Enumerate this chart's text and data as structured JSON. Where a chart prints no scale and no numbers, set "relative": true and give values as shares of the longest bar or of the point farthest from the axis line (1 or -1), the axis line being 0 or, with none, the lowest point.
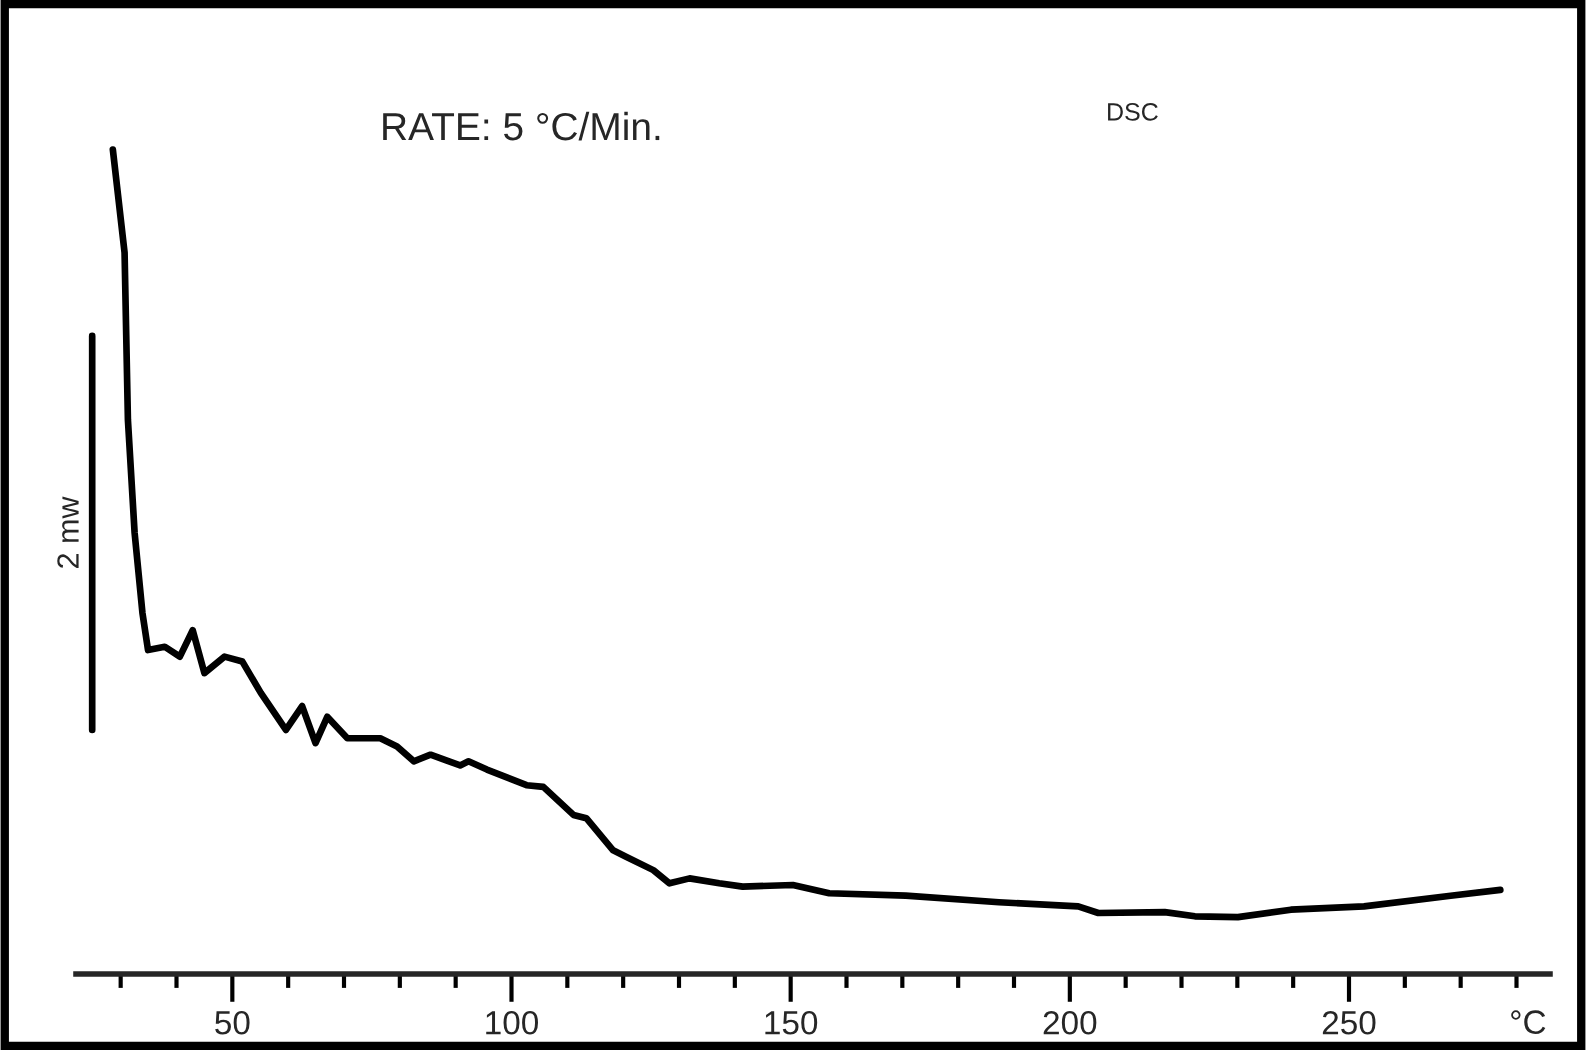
{
  "chart_data": {
    "type": "line",
    "relative": true,
    "xlabel": "°C",
    "annotations": [
      "RATE: 5 °C/Min.",
      "DSC"
    ],
    "xlim": [
      22,
      286
    ],
    "xticks": [
      {
        "value": 30,
        "label": null
      },
      {
        "value": 40,
        "label": null
      },
      50,
      {
        "value": 60,
        "label": null
      },
      {
        "value": 70,
        "label": null
      },
      {
        "value": 80,
        "label": null
      },
      {
        "value": 90,
        "label": null
      },
      100,
      {
        "value": 110,
        "label": null
      },
      {
        "value": 120,
        "label": null
      },
      {
        "value": 130,
        "label": null
      },
      {
        "value": 140,
        "label": null
      },
      150,
      {
        "value": 160,
        "label": null
      },
      {
        "value": 170,
        "label": null
      },
      {
        "value": 180,
        "label": null
      },
      {
        "value": 190,
        "label": null
      },
      200,
      {
        "value": 210,
        "label": null
      },
      {
        "value": 220,
        "label": null
      },
      {
        "value": 230,
        "label": null
      },
      {
        "value": 240,
        "label": null
      },
      250,
      {
        "value": 260,
        "label": null
      },
      {
        "value": 270,
        "label": null
      },
      {
        "value": 280,
        "label": null
      }
    ],
    "tick_labels": "x",
    "grid": false,
    "legend": false,
    "series": [
      {
        "name": "2 mw",
        "color": "#000000",
        "line_style": "solid",
        "marker": "none",
        "x": [
          24.9,
          24.9
        ],
        "values": [
          0.296,
          0.774
        ]
      },
      {
        "color": "#000000",
        "line_style": "solid",
        "marker": "none",
        "x": [
          28.6,
          30.7,
          31.3,
          32.5,
          33.9,
          34.9,
          37.9,
          40.6,
          42.9,
          45.0,
          48.6,
          51.8,
          55.1,
          59.6,
          62.5,
          64.9,
          67.0,
          70.6,
          76.5,
          79.5,
          82.5,
          85.5,
          90.8,
          92.3,
          95.6,
          102.7,
          105.7,
          111.1,
          113.4,
          118.2,
          120.6,
          125.4,
          128.3,
          131.9,
          137.2,
          141.4,
          150.4,
          156.9,
          170.6,
          187.3,
          201.5,
          205.1,
          217.0,
          222.4,
          230.1,
          239.6,
          252.7,
          268.2,
          277.1
        ],
        "values": [
          1.0,
          0.875,
          0.672,
          0.535,
          0.438,
          0.393,
          0.397,
          0.385,
          0.417,
          0.365,
          0.385,
          0.379,
          0.341,
          0.296,
          0.325,
          0.28,
          0.312,
          0.286,
          0.286,
          0.276,
          0.258,
          0.266,
          0.253,
          0.258,
          0.248,
          0.229,
          0.227,
          0.193,
          0.189,
          0.15,
          0.142,
          0.126,
          0.11,
          0.116,
          0.11,
          0.106,
          0.108,
          0.098,
          0.095,
          0.087,
          0.082,
          0.074,
          0.075,
          0.07,
          0.069,
          0.078,
          0.082,
          0.095,
          0.102
        ]
      }
    ]
  }
}
